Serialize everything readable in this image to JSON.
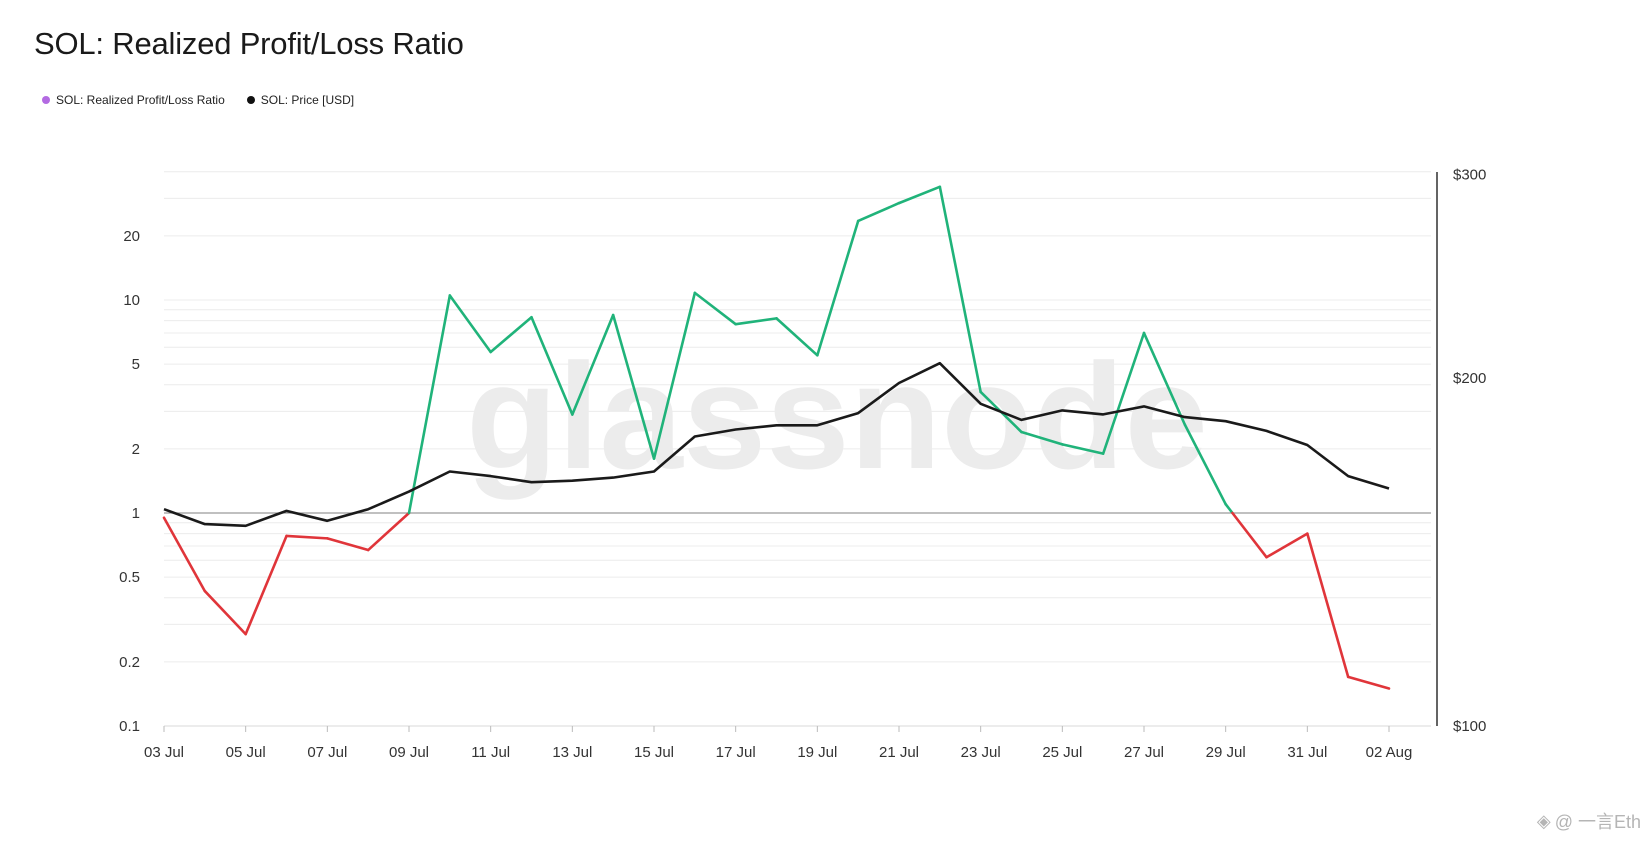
{
  "title": "SOL: Realized Profit/Loss Ratio",
  "legend": [
    {
      "label": "SOL: Realized Profit/Loss Ratio",
      "color": "#b36ae2"
    },
    {
      "label": "SOL: Price [USD]",
      "color": "#111111"
    }
  ],
  "watermark": "glassnode",
  "credit": {
    "icon": "binance-square-icon",
    "text": "@ 一言Eth"
  },
  "colors": {
    "profit": "#20b37a",
    "loss": "#e0353a",
    "price": "#1a1a1a",
    "baseline": "#9a9a9a",
    "grid": "#ececec"
  },
  "chart_data": {
    "type": "line",
    "title": "SOL: Realized Profit/Loss Ratio",
    "x": [
      "03 Jul",
      "04 Jul",
      "05 Jul",
      "06 Jul",
      "07 Jul",
      "08 Jul",
      "09 Jul",
      "10 Jul",
      "11 Jul",
      "12 Jul",
      "13 Jul",
      "14 Jul",
      "15 Jul",
      "16 Jul",
      "17 Jul",
      "18 Jul",
      "19 Jul",
      "20 Jul",
      "21 Jul",
      "22 Jul",
      "23 Jul",
      "24 Jul",
      "25 Jul",
      "26 Jul",
      "27 Jul",
      "28 Jul",
      "29 Jul",
      "30 Jul",
      "31 Jul",
      "01 Aug",
      "02 Aug"
    ],
    "x_tick_labels": [
      "03 Jul",
      "05 Jul",
      "07 Jul",
      "09 Jul",
      "11 Jul",
      "13 Jul",
      "15 Jul",
      "17 Jul",
      "19 Jul",
      "21 Jul",
      "23 Jul",
      "25 Jul",
      "27 Jul",
      "29 Jul",
      "31 Jul",
      "02 Aug"
    ],
    "left_axis": {
      "scale": "log",
      "ticks": [
        "0.1",
        "0.2",
        "0.5",
        "1",
        "2",
        "5",
        "10",
        "20"
      ],
      "range": [
        0.1,
        45
      ]
    },
    "right_axis": {
      "scale": "log",
      "ticks": [
        "$100",
        "$200",
        "$300"
      ],
      "range": [
        100,
        300
      ]
    },
    "baseline": 1,
    "grid": true,
    "legend_position": "top-left",
    "series": [
      {
        "name": "SOL: Realized Profit/Loss Ratio",
        "axis": "left",
        "values": [
          0.95,
          0.43,
          0.27,
          0.78,
          0.76,
          0.67,
          1.0,
          10.5,
          5.7,
          8.3,
          2.9,
          8.5,
          1.8,
          10.8,
          7.7,
          8.2,
          5.5,
          23.5,
          28.5,
          34,
          3.7,
          2.4,
          2.1,
          1.9,
          7.0,
          2.6,
          1.1,
          0.62,
          0.8,
          0.17,
          0.15
        ]
      },
      {
        "name": "SOL: Price [USD]",
        "axis": "right",
        "values": [
          154,
          149.5,
          149,
          153.5,
          150.5,
          154,
          159.5,
          166,
          164.5,
          162.5,
          163,
          164,
          166,
          178,
          180.5,
          182,
          182,
          186.5,
          198,
          206,
          190,
          184,
          187.5,
          186,
          189,
          185,
          183.5,
          180,
          175,
          164.5,
          160.5
        ]
      }
    ]
  }
}
